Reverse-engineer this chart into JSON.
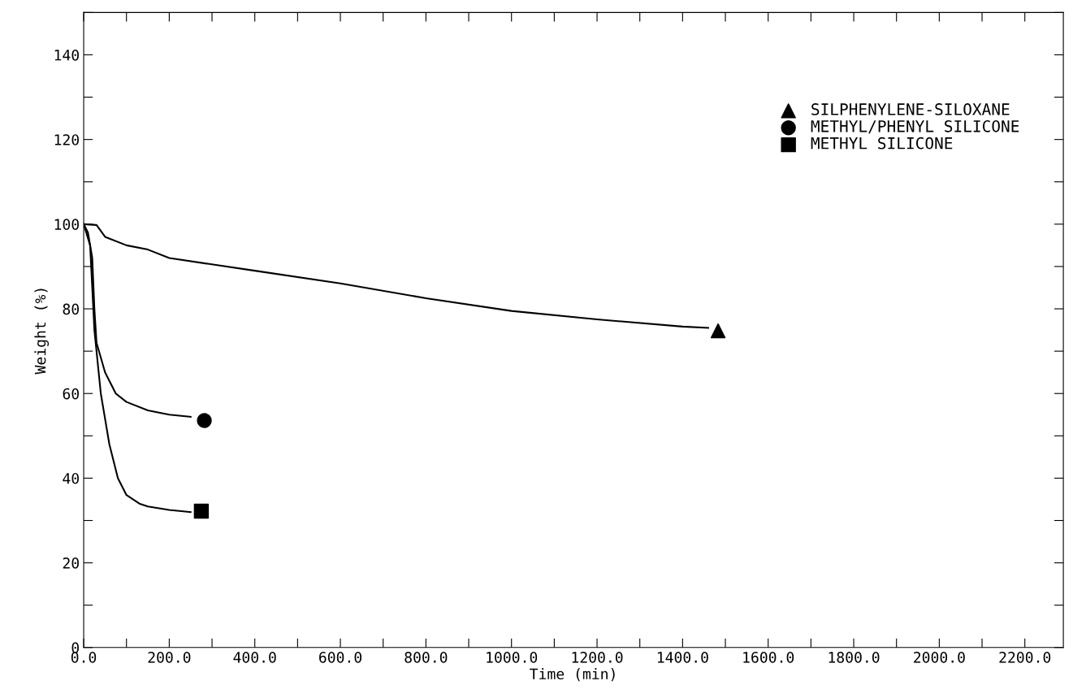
{
  "chart_data": {
    "type": "line",
    "xlabel": "Time (min)",
    "ylabel": "Weight (%)",
    "xlim": [
      0,
      2290
    ],
    "ylim": [
      0,
      150
    ],
    "xticks": [
      {
        "value": 0,
        "label": "0.0"
      },
      {
        "value": 100,
        "label": null
      },
      {
        "value": 200,
        "label": "200.0"
      },
      {
        "value": 300,
        "label": null
      },
      {
        "value": 400,
        "label": "400.0"
      },
      {
        "value": 500,
        "label": null
      },
      {
        "value": 600,
        "label": "600.0"
      },
      {
        "value": 700,
        "label": null
      },
      {
        "value": 800,
        "label": "800.0"
      },
      {
        "value": 900,
        "label": null
      },
      {
        "value": 1000,
        "label": "1000.0"
      },
      {
        "value": 1100,
        "label": null
      },
      {
        "value": 1200,
        "label": "1200.0"
      },
      {
        "value": 1300,
        "label": null
      },
      {
        "value": 1400,
        "label": "1400.0"
      },
      {
        "value": 1500,
        "label": null
      },
      {
        "value": 1600,
        "label": "1600.0"
      },
      {
        "value": 1700,
        "label": null
      },
      {
        "value": 1800,
        "label": "1800.0"
      },
      {
        "value": 1900,
        "label": null
      },
      {
        "value": 2000,
        "label": "2000.0"
      },
      {
        "value": 2100,
        "label": null
      },
      {
        "value": 2200,
        "label": "2200.0"
      }
    ],
    "yticks": [
      0,
      {
        "value": 10,
        "label": null
      },
      20,
      {
        "value": 30,
        "label": null
      },
      40,
      {
        "value": 50,
        "label": null
      },
      60,
      {
        "value": 70,
        "label": null
      },
      80,
      {
        "value": 90,
        "label": null
      },
      100,
      {
        "value": 110,
        "label": null
      },
      120,
      {
        "value": 130,
        "label": null
      },
      140,
      {
        "value": 150,
        "label": null
      }
    ],
    "grid": false,
    "legend": "top right",
    "series": [
      {
        "color": "#000000",
        "x": [
          0,
          30,
          50,
          100,
          150,
          200,
          400,
          600,
          800,
          1000,
          1200,
          1400,
          1460
        ],
        "values": [
          100,
          99.8,
          97,
          95,
          94,
          92,
          89,
          86,
          82.5,
          79.5,
          77.5,
          75.8,
          75.5
        ]
      },
      {
        "color": "#000000",
        "x": [
          0,
          10,
          20,
          25,
          30,
          50,
          75,
          100,
          150,
          200,
          250
        ],
        "values": [
          100,
          98,
          92,
          80,
          72,
          65,
          60,
          58,
          56,
          55,
          54.5
        ]
      },
      {
        "color": "#000000",
        "x": [
          0,
          15,
          25,
          40,
          60,
          80,
          100,
          130,
          150,
          200,
          250
        ],
        "values": [
          100,
          95,
          75,
          60,
          48,
          40,
          36,
          34,
          33.3,
          32.5,
          32
        ]
      },
      {
        "type": "scatter",
        "name": "SILPHENYLENE-SILOXANE",
        "marker": "triangle",
        "color": "#000000",
        "x": [
          1483
        ],
        "values": [
          74.8
        ]
      },
      {
        "type": "scatter",
        "name": "METHYL/PHENYL SILICONE",
        "marker": "circle",
        "color": "#000000",
        "x": [
          282
        ],
        "values": [
          53.6
        ]
      },
      {
        "type": "scatter",
        "name": "METHYL SILICONE",
        "marker": "square",
        "color": "#000000",
        "x": [
          275
        ],
        "values": [
          32.2
        ]
      }
    ]
  }
}
